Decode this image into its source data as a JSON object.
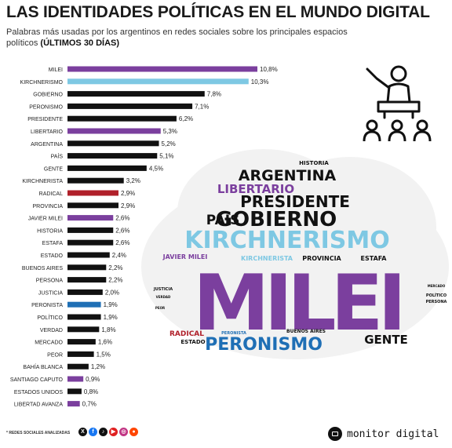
{
  "title": "LAS IDENTIDADES POLÍTICAS EN EL MUNDO DIGITAL",
  "subtitle": "Palabras más usadas por los argentinos en redes sociales sobre los principales espacios políticos",
  "subtitle_bold": "(ÚLTIMOS 30 DÍAS)",
  "footer_note": "* REDES SOCIALES ANALIZADAS",
  "brand": "monitor digital",
  "colors": {
    "black": "#111111",
    "purple": "#7b3f9e",
    "light_blue": "#7ec8e3",
    "red": "#b0202a",
    "blue": "#1f6fb5"
  },
  "icons": [
    "speaker-podium-icon",
    "audience-icon",
    "x-icon",
    "facebook-icon",
    "tiktok-icon",
    "youtube-icon",
    "instagram-icon",
    "reddit-icon",
    "monitor-logo-icon"
  ],
  "chart_data": {
    "type": "bar",
    "orientation": "horizontal",
    "categories": [
      "MILEI",
      "KIRCHNERISMO",
      "GOBIERNO",
      "PERONISMO",
      "PRESIDENTE",
      "LIBERTARIO",
      "ARGENTINA",
      "PAÍS",
      "GENTE",
      "KIRCHNERISTA",
      "RADICAL",
      "PROVINCIA",
      "JAVIER MILEI",
      "HISTORIA",
      "ESTAFA",
      "ESTADO",
      "BUENOS AIRES",
      "PERSONA",
      "JUSTICIA",
      "PERONISTA",
      "POLÍTICO",
      "VERDAD",
      "MERCADO",
      "PEOR",
      "BAHÍA BLANCA",
      "SANTIAGO CAPUTO",
      "ESTADOS UNIDOS",
      "LIBERTAD AVANZA"
    ],
    "values": [
      10.8,
      10.3,
      7.8,
      7.1,
      6.2,
      5.3,
      5.2,
      5.1,
      4.5,
      3.2,
      2.9,
      2.9,
      2.6,
      2.6,
      2.6,
      2.4,
      2.2,
      2.2,
      2.0,
      1.9,
      1.9,
      1.8,
      1.6,
      1.5,
      1.2,
      0.9,
      0.8,
      0.7
    ],
    "labels": [
      "10,8%",
      "10,3%",
      "7,8%",
      "7,1%",
      "6,2%",
      "5,3%",
      "5,2%",
      "5,1%",
      "4,5%",
      "3,2%",
      "2,9%",
      "2,9%",
      "2,6%",
      "2,6%",
      "2,6%",
      "2,4%",
      "2,2%",
      "2,2%",
      "2,0%",
      "1,9%",
      "1,9%",
      "1,8%",
      "1,6%",
      "1,5%",
      "1,2%",
      "0,9%",
      "0,8%",
      "0,7%"
    ],
    "bar_colors": [
      "purple",
      "light_blue",
      "black",
      "black",
      "black",
      "purple",
      "black",
      "black",
      "black",
      "black",
      "red",
      "black",
      "purple",
      "black",
      "black",
      "black",
      "black",
      "black",
      "black",
      "blue",
      "black",
      "black",
      "black",
      "black",
      "black",
      "purple",
      "black",
      "purple"
    ],
    "xlim": [
      0,
      10.8
    ],
    "grid": false,
    "legend": "none"
  },
  "word_cloud": [
    {
      "text": "MILEI",
      "color": "purple",
      "weight": 10
    },
    {
      "text": "KIRCHNERISMO",
      "color": "light_blue",
      "weight": 7
    },
    {
      "text": "GOBIERNO",
      "color": "black",
      "weight": 6
    },
    {
      "text": "PERONISMO",
      "color": "blue",
      "weight": 5
    },
    {
      "text": "PRESIDENTE",
      "color": "black",
      "weight": 5
    },
    {
      "text": "ARGENTINA",
      "color": "black",
      "weight": 5
    },
    {
      "text": "LIBERTARIO",
      "color": "purple",
      "weight": 4
    },
    {
      "text": "PAÍS",
      "color": "black",
      "weight": 4
    },
    {
      "text": "GENTE",
      "color": "black",
      "weight": 4
    },
    {
      "text": "HISTORIA",
      "color": "black",
      "weight": 1
    },
    {
      "text": "JAVIER MILEI",
      "color": "purple",
      "weight": 2
    },
    {
      "text": "KIRCHNERISTA",
      "color": "light_blue",
      "weight": 2
    },
    {
      "text": "PROVINCIA",
      "color": "black",
      "weight": 2
    },
    {
      "text": "ESTAFA",
      "color": "black",
      "weight": 2
    },
    {
      "text": "RADICAL",
      "color": "red",
      "weight": 2
    },
    {
      "text": "ESTADO",
      "color": "black",
      "weight": 1
    },
    {
      "text": "BUENOS AIRES",
      "color": "black",
      "weight": 1
    },
    {
      "text": "PERONISTA",
      "color": "blue",
      "weight": 1
    },
    {
      "text": "JUSTICIA",
      "color": "black",
      "weight": 1
    },
    {
      "text": "MERCADO",
      "color": "black",
      "weight": 1
    },
    {
      "text": "POLÍTICO",
      "color": "black",
      "weight": 1
    },
    {
      "text": "PERSONA",
      "color": "black",
      "weight": 1
    },
    {
      "text": "VERDAD",
      "color": "black",
      "weight": 1
    },
    {
      "text": "PEOR",
      "color": "black",
      "weight": 1
    }
  ]
}
